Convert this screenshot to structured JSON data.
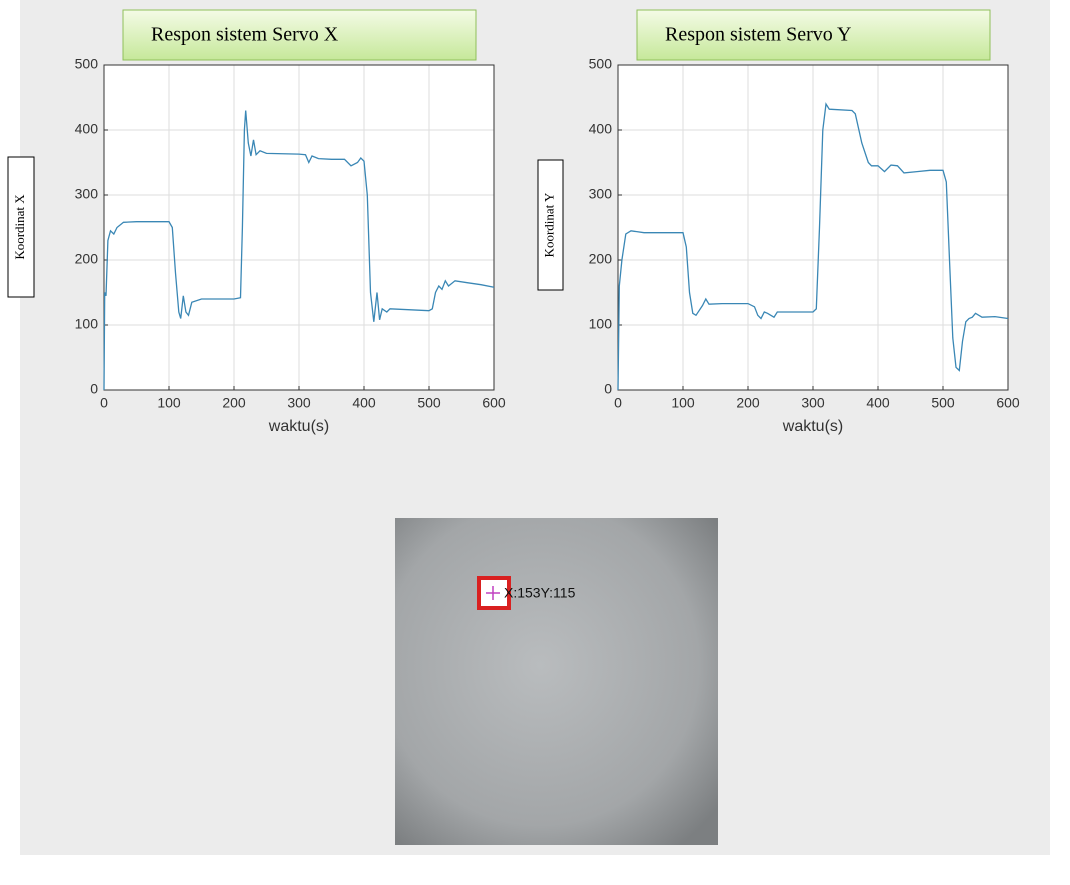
{
  "chart_data": [
    {
      "type": "line",
      "title": "Respon sistem Servo X",
      "ylabel": "Koordinat X",
      "xlabel": "waktu(s)",
      "color": "#3a87b5",
      "grid": true,
      "xlim": [
        0,
        600
      ],
      "ylim": [
        0,
        500
      ],
      "xticks": [
        0,
        100,
        200,
        300,
        400,
        500,
        600
      ],
      "yticks": [
        0,
        100,
        200,
        300,
        400,
        500
      ],
      "x": [
        0,
        1,
        3,
        6,
        10,
        15,
        20,
        30,
        50,
        100,
        105,
        110,
        115,
        118,
        122,
        126,
        130,
        135,
        150,
        200,
        210,
        213,
        216,
        218,
        222,
        226,
        230,
        234,
        240,
        250,
        300,
        310,
        315,
        320,
        330,
        350,
        370,
        380,
        390,
        395,
        400,
        405,
        410,
        415,
        420,
        424,
        428,
        435,
        440,
        500,
        505,
        510,
        515,
        520,
        525,
        530,
        540,
        560,
        580,
        600
      ],
      "values": [
        0,
        150,
        145,
        230,
        245,
        240,
        250,
        258,
        259,
        259,
        250,
        180,
        120,
        110,
        145,
        120,
        115,
        135,
        140,
        140,
        142,
        250,
        400,
        430,
        380,
        360,
        385,
        362,
        368,
        364,
        363,
        362,
        350,
        360,
        356,
        355,
        355,
        345,
        350,
        357,
        352,
        300,
        150,
        105,
        150,
        108,
        125,
        120,
        125,
        122,
        125,
        150,
        160,
        155,
        168,
        160,
        168,
        165,
        162,
        158
      ]
    },
    {
      "type": "line",
      "title": "Respon sistem Servo Y",
      "ylabel": "Koordinat Y",
      "xlabel": "waktu(s)",
      "color": "#3a87b5",
      "grid": true,
      "xlim": [
        0,
        600
      ],
      "ylim": [
        0,
        500
      ],
      "xticks": [
        0,
        100,
        200,
        300,
        400,
        500,
        600
      ],
      "yticks": [
        0,
        100,
        200,
        300,
        400,
        500
      ],
      "x": [
        0,
        2,
        6,
        12,
        20,
        40,
        100,
        105,
        110,
        115,
        120,
        130,
        135,
        140,
        160,
        200,
        210,
        215,
        220,
        225,
        230,
        240,
        245,
        260,
        300,
        305,
        310,
        315,
        320,
        325,
        360,
        365,
        375,
        385,
        390,
        400,
        410,
        420,
        430,
        440,
        460,
        480,
        500,
        505,
        510,
        515,
        520,
        525,
        530,
        535,
        540,
        545,
        550,
        560,
        580,
        600
      ],
      "values": [
        0,
        160,
        200,
        240,
        245,
        242,
        242,
        220,
        150,
        118,
        115,
        130,
        140,
        132,
        133,
        133,
        128,
        115,
        110,
        120,
        118,
        112,
        120,
        120,
        120,
        125,
        250,
        400,
        440,
        432,
        430,
        425,
        380,
        350,
        345,
        345,
        336,
        346,
        345,
        334,
        336,
        338,
        338,
        320,
        200,
        80,
        35,
        30,
        75,
        105,
        110,
        112,
        118,
        112,
        113,
        110
      ]
    }
  ],
  "image": {
    "label": "X:153Y:115"
  }
}
